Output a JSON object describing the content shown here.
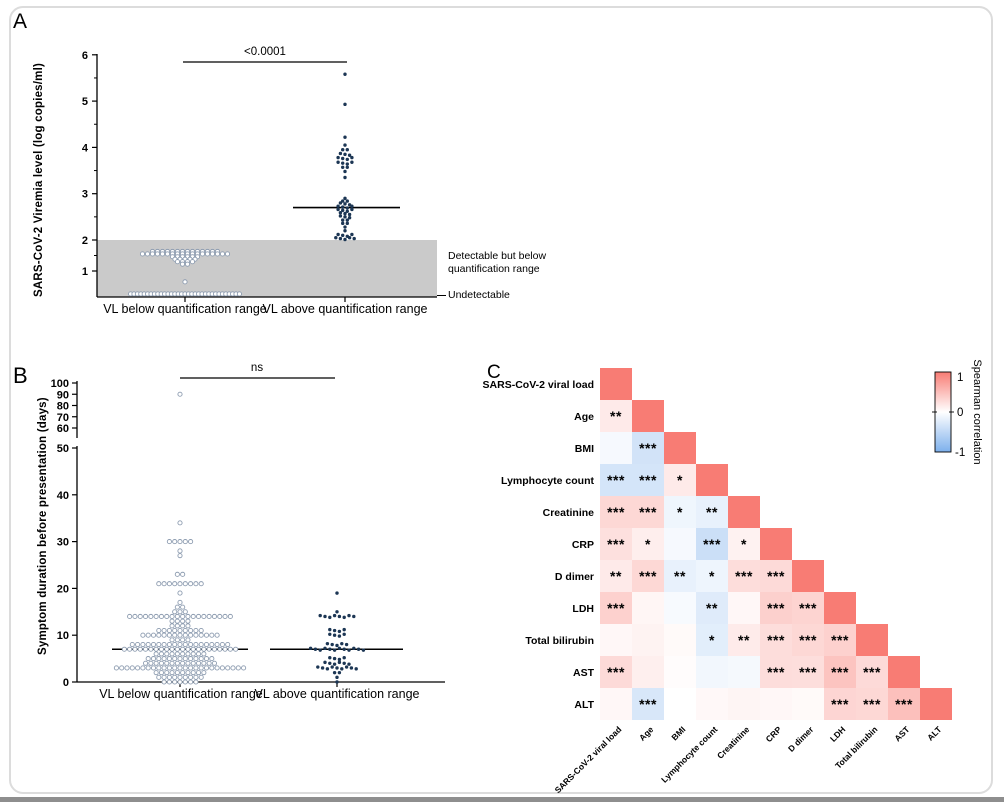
{
  "figure_panels": [
    "A",
    "B",
    "C"
  ],
  "styles": {
    "open_marker_stroke": "#8d9cb0",
    "filled_marker_fill": "#1c3654",
    "band_fill": "#cacaca",
    "heat_positive_color": "#f87c74",
    "heat_negative_color": "#7db0ec",
    "axis_color": "#000000"
  },
  "chart_data": [
    {
      "type": "scatter",
      "panel_label": "A",
      "ylabel": "SARS-CoV-2 Viremia level (log copies/ml)",
      "yticks": [
        1,
        2,
        3,
        4,
        5,
        6
      ],
      "minor_yticks": [
        1.5,
        2.5,
        3.5,
        4.5,
        5.5
      ],
      "ylim": [
        0.2,
        6.1
      ],
      "categories": [
        "VL below quantification range",
        "VL above quantification range"
      ],
      "significance": "<0.0001",
      "shaded_band": {
        "from": 0.2,
        "to": 2,
        "label": "Detectable but below quantification range"
      },
      "baseline_label": "Undetectable",
      "series": [
        {
          "name": "VL below quantification range",
          "style": "open",
          "rows": [
            [
              1.63,
              14
            ],
            [
              1.55,
              18
            ],
            [
              1.46,
              6
            ],
            [
              1.38,
              5
            ],
            [
              1.3,
              4
            ],
            [
              1.22,
              2
            ],
            [
              0.65,
              1
            ],
            [
              0.26,
              33
            ]
          ]
        },
        {
          "name": "VL above quantification range",
          "style": "filled",
          "median": 2.7,
          "rows": [
            [
              5.58,
              1
            ],
            [
              4.93,
              1
            ],
            [
              4.22,
              1
            ],
            [
              4.05,
              1
            ],
            [
              3.95,
              2
            ],
            [
              3.85,
              3
            ],
            [
              3.76,
              4
            ],
            [
              3.66,
              4
            ],
            [
              3.57,
              2
            ],
            [
              3.48,
              1
            ],
            [
              3.35,
              1
            ],
            [
              2.9,
              1
            ],
            [
              2.84,
              2
            ],
            [
              2.78,
              3
            ],
            [
              2.71,
              4
            ],
            [
              2.64,
              4
            ],
            [
              2.57,
              3
            ],
            [
              2.5,
              3
            ],
            [
              2.43,
              2
            ],
            [
              2.36,
              2
            ],
            [
              2.28,
              1
            ],
            [
              2.2,
              1
            ],
            [
              2.1,
              4
            ],
            [
              2.03,
              5
            ]
          ]
        }
      ]
    },
    {
      "type": "scatter",
      "panel_label": "B",
      "ylabel": "Symptom duration before presentation (days)",
      "yticks_lower": [
        0,
        10,
        20,
        30,
        40,
        50
      ],
      "yticks_upper": [
        60,
        70,
        80,
        90,
        100
      ],
      "axis_break_between": [
        50,
        60
      ],
      "ylim": [
        0,
        100
      ],
      "categories": [
        "VL below quantification range",
        "VL above quantification range"
      ],
      "significance": "ns",
      "series": [
        {
          "name": "VL below quantification range",
          "style": "open",
          "median": 7,
          "rows": [
            [
              90,
              1
            ],
            [
              34,
              1
            ],
            [
              30,
              5
            ],
            [
              28,
              1
            ],
            [
              27,
              1
            ],
            [
              23,
              2
            ],
            [
              21,
              9
            ],
            [
              19,
              1
            ],
            [
              17,
              1
            ],
            [
              16,
              2
            ],
            [
              15,
              3
            ],
            [
              14,
              20
            ],
            [
              13,
              4
            ],
            [
              12,
              4
            ],
            [
              11,
              9
            ],
            [
              10,
              15
            ],
            [
              9,
              4
            ],
            [
              8,
              19
            ],
            [
              7,
              22
            ],
            [
              6,
              10
            ],
            [
              5,
              13
            ],
            [
              4,
              14
            ],
            [
              3,
              25
            ],
            [
              2,
              10
            ],
            [
              1,
              9
            ],
            [
              0,
              7
            ]
          ]
        },
        {
          "name": "VL above quantification range",
          "style": "filled",
          "median": 7,
          "rows": [
            [
              19,
              1
            ],
            [
              15,
              1
            ],
            [
              14,
              8
            ],
            [
              11,
              4
            ],
            [
              10,
              4
            ],
            [
              8,
              5
            ],
            [
              7,
              12
            ],
            [
              5,
              4
            ],
            [
              4,
              6
            ],
            [
              3,
              9
            ],
            [
              2,
              2
            ],
            [
              1,
              1
            ],
            [
              0,
              1
            ]
          ]
        }
      ]
    },
    {
      "type": "heatmap",
      "panel_label": "C",
      "subtype": "lower-triangular correlation matrix",
      "variables": [
        "SARS-CoV-2 viral load",
        "Age",
        "BMI",
        "Lymphocyte count",
        "Creatinine",
        "CRP",
        "D dimer",
        "LDH",
        "Total bilirubin",
        "AST",
        "ALT"
      ],
      "colorbar": {
        "title": "Spearman correlation",
        "ticks": [
          "1",
          "0",
          "-1"
        ]
      },
      "rows": [
        {
          "name": "SARS-CoV-2 viral load",
          "cells": [
            [
              1,
              ""
            ]
          ]
        },
        {
          "name": "Age",
          "cells": [
            [
              0.16,
              "**"
            ],
            [
              1,
              ""
            ]
          ]
        },
        {
          "name": "BMI",
          "cells": [
            [
              -0.07,
              ""
            ],
            [
              -0.35,
              "***"
            ],
            [
              1,
              ""
            ]
          ]
        },
        {
          "name": "Lymphocyte count",
          "cells": [
            [
              -0.33,
              "***"
            ],
            [
              -0.33,
              "***"
            ],
            [
              0.16,
              "*"
            ],
            [
              1,
              ""
            ]
          ]
        },
        {
          "name": "Creatinine",
          "cells": [
            [
              0.3,
              "***"
            ],
            [
              0.3,
              "***"
            ],
            [
              -0.12,
              "*"
            ],
            [
              -0.18,
              "**"
            ],
            [
              1,
              ""
            ]
          ]
        },
        {
          "name": "CRP",
          "cells": [
            [
              0.24,
              "***"
            ],
            [
              0.13,
              "*"
            ],
            [
              -0.07,
              ""
            ],
            [
              -0.4,
              "***"
            ],
            [
              0.1,
              "*"
            ],
            [
              1,
              ""
            ]
          ]
        },
        {
          "name": "D dimer",
          "cells": [
            [
              0.16,
              "**"
            ],
            [
              0.3,
              "***"
            ],
            [
              -0.18,
              "**"
            ],
            [
              -0.13,
              "*"
            ],
            [
              0.26,
              "***"
            ],
            [
              0.28,
              "***"
            ],
            [
              1,
              ""
            ]
          ]
        },
        {
          "name": "LDH",
          "cells": [
            [
              0.35,
              "***"
            ],
            [
              0.07,
              ""
            ],
            [
              -0.06,
              ""
            ],
            [
              -0.25,
              "**"
            ],
            [
              0.06,
              ""
            ],
            [
              0.36,
              "***"
            ],
            [
              0.33,
              "***"
            ],
            [
              1,
              ""
            ]
          ]
        },
        {
          "name": "Total bilirubin",
          "cells": [
            [
              0.06,
              ""
            ],
            [
              0.09,
              ""
            ],
            [
              0.04,
              ""
            ],
            [
              -0.22,
              "*"
            ],
            [
              0.15,
              "**"
            ],
            [
              0.26,
              "***"
            ],
            [
              0.3,
              "***"
            ],
            [
              0.35,
              "***"
            ],
            [
              1,
              ""
            ]
          ]
        },
        {
          "name": "AST",
          "cells": [
            [
              0.28,
              "***"
            ],
            [
              0.12,
              ""
            ],
            [
              0.02,
              ""
            ],
            [
              -0.1,
              ""
            ],
            [
              -0.08,
              ""
            ],
            [
              0.26,
              "***"
            ],
            [
              0.25,
              "***"
            ],
            [
              0.45,
              "***"
            ],
            [
              0.28,
              "***"
            ],
            [
              1,
              ""
            ]
          ]
        },
        {
          "name": "ALT",
          "cells": [
            [
              0.06,
              ""
            ],
            [
              -0.3,
              "***"
            ],
            [
              0.0,
              ""
            ],
            [
              0.05,
              ""
            ],
            [
              0.08,
              ""
            ],
            [
              0.06,
              ""
            ],
            [
              0.04,
              ""
            ],
            [
              0.32,
              "***"
            ],
            [
              0.3,
              "***"
            ],
            [
              0.48,
              "***"
            ],
            [
              1,
              ""
            ]
          ]
        }
      ]
    }
  ]
}
